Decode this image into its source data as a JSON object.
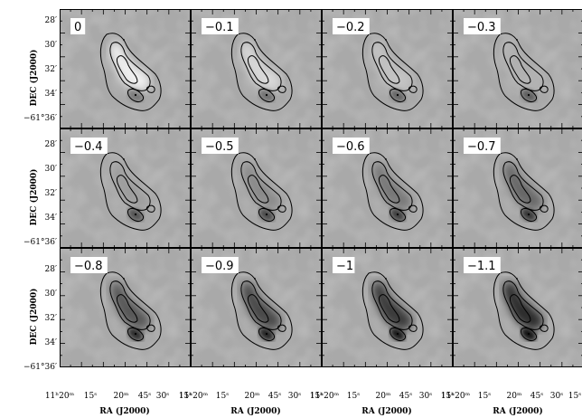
{
  "panels": [
    {
      "label": "0",
      "darkness": 0.0
    },
    {
      "label": "−0.1",
      "darkness": 0.1
    },
    {
      "label": "−0.2",
      "darkness": 0.2
    },
    {
      "label": "−0.3",
      "darkness": 0.3
    },
    {
      "label": "−0.4",
      "darkness": 0.4
    },
    {
      "label": "−0.5",
      "darkness": 0.5
    },
    {
      "label": "−0.6",
      "darkness": 0.6
    },
    {
      "label": "−0.7",
      "darkness": 0.7
    },
    {
      "label": "−0.8",
      "darkness": 0.8
    },
    {
      "label": "−0.9",
      "darkness": 0.9
    },
    {
      "label": "−1",
      "darkness": 1.0
    },
    {
      "label": "−1.1",
      "darkness": 1.1
    }
  ],
  "axes": {
    "ylabel": "DEC (J2000)",
    "xlabel": "RA (J2000)",
    "yticks": [
      "28′",
      "30′",
      "32′",
      "34′",
      "−61°36′"
    ],
    "xticks": [
      "11ʰ20ᵐ",
      "15ˢ",
      "20ᵐ",
      "45ˢ",
      "30ˢ",
      "15ˢ"
    ]
  },
  "colors": {
    "background_gray": "#a9a9a9",
    "source_bright": "#ffffff",
    "source_dark": "#000000",
    "contour": "#000000"
  }
}
